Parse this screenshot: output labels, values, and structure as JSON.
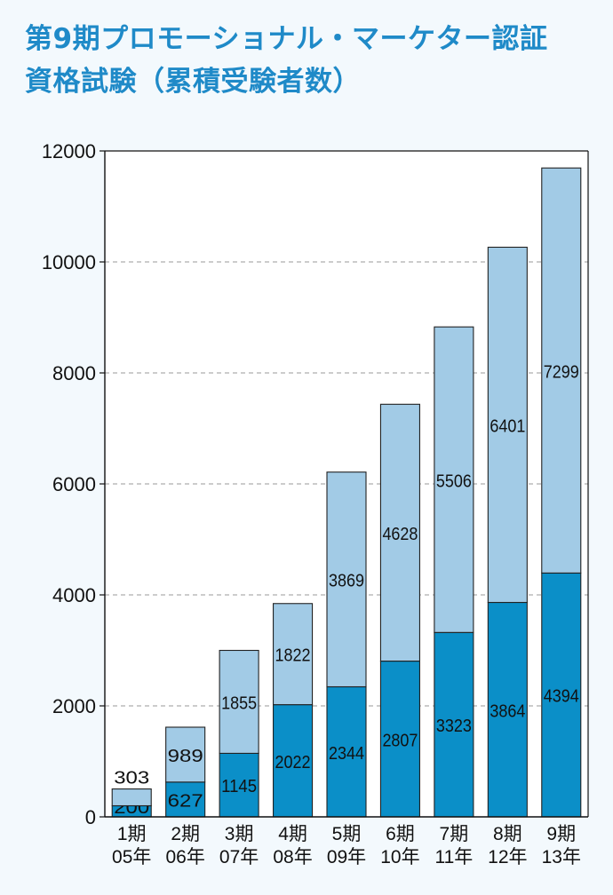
{
  "title": {
    "line1": "第9期プロモーショナル・マーケター認証",
    "line2": "資格試験（累積受験者数）"
  },
  "colors": {
    "title": "#1f8ac8",
    "bottom_series": "#0b8fc8",
    "top_series": "#a2cbe6",
    "background": "#f3f9fd"
  },
  "chart_data": {
    "type": "bar",
    "stacked": true,
    "categories": [
      [
        "1期",
        "05年"
      ],
      [
        "2期",
        "06年"
      ],
      [
        "3期",
        "07年"
      ],
      [
        "4期",
        "08年"
      ],
      [
        "5期",
        "09年"
      ],
      [
        "6期",
        "10年"
      ],
      [
        "7期",
        "11年"
      ],
      [
        "8期",
        "12年"
      ],
      [
        "9期",
        "13年"
      ]
    ],
    "series": [
      {
        "values": [
          200,
          627,
          1145,
          2022,
          2344,
          2807,
          3323,
          3864,
          4394
        ]
      },
      {
        "values": [
          303,
          989,
          1855,
          1822,
          3869,
          4628,
          5506,
          6401,
          7299
        ]
      }
    ],
    "ylim": [
      0,
      12000
    ],
    "yticks": [
      "0",
      "2000",
      "4000",
      "6000",
      "8000",
      "10000",
      "12000"
    ],
    "grid": true
  }
}
